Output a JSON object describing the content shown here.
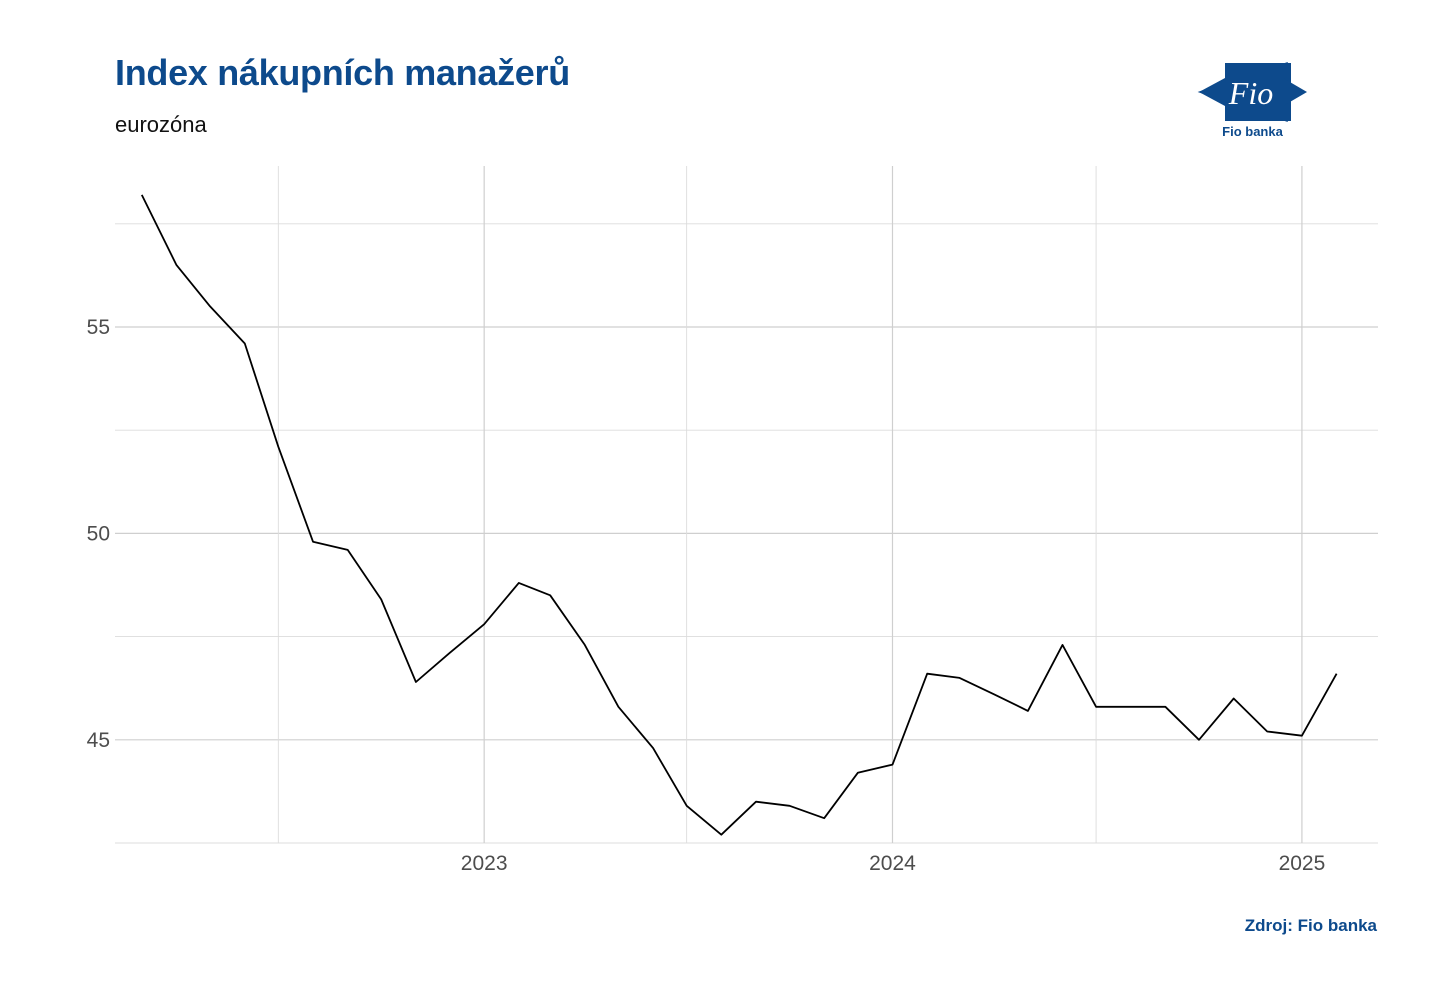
{
  "header": {
    "title": "Index nákupních manažerů",
    "subtitle": "eurozóna"
  },
  "footer": {
    "source": "Zdroj: Fio banka"
  },
  "logo": {
    "mark_text": "Fio",
    "label": "Fio banka",
    "color": "#0d4a8c"
  },
  "chart_data": {
    "type": "line",
    "title": "Index nákupních manažerů",
    "subtitle": "eurozóna",
    "xlabel": "",
    "ylabel": "",
    "x": [
      "2022-03",
      "2022-04",
      "2022-05",
      "2022-06",
      "2022-07",
      "2022-08",
      "2022-09",
      "2022-10",
      "2022-11",
      "2022-12",
      "2023-01",
      "2023-02",
      "2023-03",
      "2023-04",
      "2023-05",
      "2023-06",
      "2023-07",
      "2023-08",
      "2023-09",
      "2023-10",
      "2023-11",
      "2023-12",
      "2024-01",
      "2024-02",
      "2024-03",
      "2024-04",
      "2024-05",
      "2024-06",
      "2024-07",
      "2024-08",
      "2024-09",
      "2024-10",
      "2024-11",
      "2024-12",
      "2025-01",
      "2025-02"
    ],
    "series": [
      {
        "values": [
          58.2,
          56.5,
          55.5,
          54.6,
          52.1,
          49.8,
          49.6,
          48.4,
          46.4,
          47.1,
          47.8,
          48.8,
          48.5,
          47.3,
          45.8,
          44.8,
          43.4,
          42.7,
          43.5,
          43.4,
          43.1,
          44.2,
          44.4,
          46.6,
          46.5,
          46.1,
          45.7,
          47.3,
          45.8,
          45.8,
          45.8,
          45.0,
          46.0,
          45.2,
          45.1,
          46.6
        ]
      }
    ],
    "x_ticks": [
      "2023",
      "2024",
      "2025"
    ],
    "y_ticks": [
      45,
      50,
      55
    ],
    "ylim": [
      42.5,
      58.9
    ],
    "xlim": [
      "2022-02-05",
      "2025-03-10"
    ],
    "grid": true,
    "line_color": "#000000"
  }
}
